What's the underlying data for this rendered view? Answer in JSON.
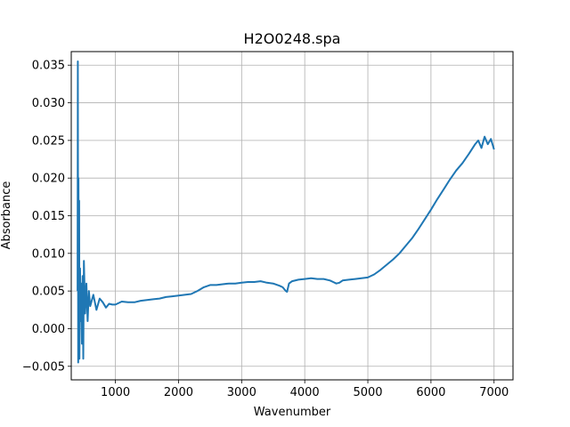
{
  "chart_data": {
    "type": "line",
    "title": "H2O0248.spa",
    "xlabel": "Wavenumber",
    "ylabel": "Absorbance",
    "xlim": [
      300,
      7300
    ],
    "ylim": [
      -0.0068,
      0.0368
    ],
    "grid": true,
    "legend": "none",
    "x_ticks": [
      1000,
      2000,
      3000,
      4000,
      5000,
      6000,
      7000
    ],
    "x_tick_labels": [
      "1000",
      "2000",
      "3000",
      "4000",
      "5000",
      "6000",
      "7000"
    ],
    "y_ticks": [
      -0.005,
      0.0,
      0.005,
      0.01,
      0.015,
      0.02,
      0.025,
      0.03,
      0.035
    ],
    "y_tick_labels": [
      "−0.005",
      "0.000",
      "0.005",
      "0.010",
      "0.015",
      "0.020",
      "0.025",
      "0.030",
      "0.035"
    ],
    "series": [
      {
        "color": "#1f77b4",
        "x": [
          400,
          405,
          410,
          415,
          420,
          425,
          430,
          440,
          450,
          460,
          470,
          480,
          490,
          500,
          520,
          540,
          560,
          580,
          600,
          650,
          700,
          750,
          800,
          850,
          900,
          950,
          1000,
          1100,
          1200,
          1300,
          1400,
          1500,
          1600,
          1700,
          1800,
          1900,
          2000,
          2100,
          2200,
          2300,
          2400,
          2500,
          2600,
          2700,
          2800,
          2900,
          3000,
          3100,
          3200,
          3300,
          3400,
          3500,
          3600,
          3650,
          3700,
          3720,
          3750,
          3800,
          3900,
          4000,
          4100,
          4200,
          4300,
          4400,
          4450,
          4500,
          4550,
          4600,
          4700,
          4800,
          4900,
          5000,
          5100,
          5200,
          5300,
          5400,
          5500,
          5600,
          5700,
          5800,
          5900,
          6000,
          6100,
          6200,
          6300,
          6400,
          6500,
          6600,
          6700,
          6750,
          6800,
          6850,
          6900,
          6950,
          7000
        ],
        "values": [
          0.005,
          0.0355,
          -0.0045,
          0.02,
          0.002,
          0.017,
          -0.004,
          0.008,
          0.001,
          0.006,
          -0.002,
          0.007,
          -0.004,
          0.009,
          0.002,
          0.006,
          0.001,
          0.005,
          0.003,
          0.0045,
          0.0025,
          0.004,
          0.0035,
          0.0028,
          0.0033,
          0.0032,
          0.0032,
          0.0036,
          0.0035,
          0.0035,
          0.0037,
          0.0038,
          0.0039,
          0.004,
          0.0042,
          0.0043,
          0.0044,
          0.0045,
          0.0046,
          0.005,
          0.0055,
          0.0058,
          0.0058,
          0.0059,
          0.006,
          0.006,
          0.0061,
          0.0062,
          0.0062,
          0.0063,
          0.0061,
          0.006,
          0.0057,
          0.0055,
          0.005,
          0.0049,
          0.006,
          0.0063,
          0.0065,
          0.0066,
          0.0067,
          0.0066,
          0.0066,
          0.0064,
          0.0062,
          0.006,
          0.0061,
          0.0064,
          0.0065,
          0.0066,
          0.0067,
          0.0068,
          0.0072,
          0.0078,
          0.0085,
          0.0092,
          0.01,
          0.011,
          0.012,
          0.0132,
          0.0145,
          0.0158,
          0.0172,
          0.0185,
          0.0198,
          0.021,
          0.022,
          0.0232,
          0.0245,
          0.025,
          0.024,
          0.0255,
          0.0245,
          0.0252,
          0.0238
        ]
      }
    ]
  }
}
